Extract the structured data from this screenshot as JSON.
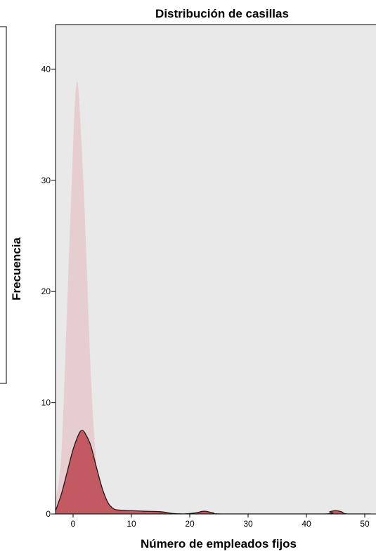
{
  "chart_data": {
    "type": "area",
    "title": "Distribución de casillas",
    "xlabel": "Número de empleados fijos",
    "ylabel": "Frecuencia",
    "xlim": [
      -3,
      51
    ],
    "ylim": [
      0,
      44
    ],
    "x_ticks": [
      "0",
      "10",
      "20",
      "30",
      "40",
      "50"
    ],
    "y_ticks": [
      "0",
      "10",
      "20",
      "30",
      "40"
    ],
    "grid": false,
    "legend": "none",
    "series": [
      {
        "color": "#e6cdd0",
        "points": [
          [
            -3,
            1.2
          ],
          [
            -2,
            5.5
          ],
          [
            -1,
            19
          ],
          [
            0,
            33
          ],
          [
            0.5,
            38.3
          ],
          [
            1,
            37.5
          ],
          [
            2,
            27
          ],
          [
            3,
            13
          ],
          [
            4,
            4.5
          ],
          [
            5,
            1.5
          ],
          [
            6,
            0.7
          ],
          [
            8,
            0.35
          ],
          [
            10,
            0.15
          ],
          [
            14,
            0.05
          ],
          [
            20,
            0
          ],
          [
            51,
            0
          ]
        ]
      },
      {
        "color": "#c35a61",
        "points": [
          [
            -3,
            0.3
          ],
          [
            -2,
            1.8
          ],
          [
            -1,
            3.8
          ],
          [
            0,
            5.8
          ],
          [
            1,
            7.2
          ],
          [
            1.5,
            7.5
          ],
          [
            2,
            7.3
          ],
          [
            3,
            6.2
          ],
          [
            4,
            4.2
          ],
          [
            5,
            2.3
          ],
          [
            6,
            1.0
          ],
          [
            7,
            0.45
          ],
          [
            8,
            0.35
          ],
          [
            10,
            0.3
          ],
          [
            12,
            0.25
          ],
          [
            15,
            0.2
          ],
          [
            17,
            0.05
          ],
          [
            19,
            0
          ],
          [
            21,
            0.1
          ],
          [
            22.5,
            0.25
          ],
          [
            24,
            0.1
          ],
          [
            26,
            0
          ],
          [
            43,
            0
          ],
          [
            44,
            0.2
          ],
          [
            45,
            0.3
          ],
          [
            46,
            0.2
          ],
          [
            47,
            0
          ],
          [
            51,
            0
          ]
        ]
      }
    ]
  }
}
